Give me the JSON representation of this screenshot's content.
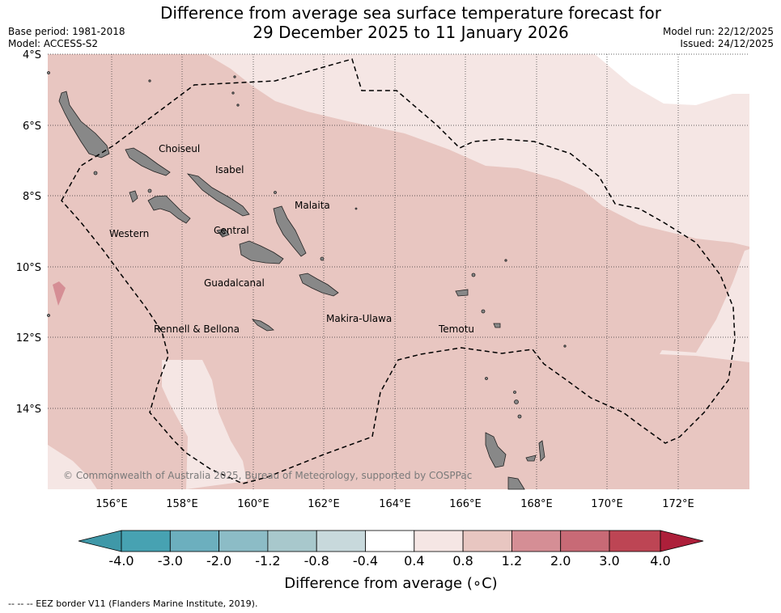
{
  "title_line1": "Difference from average sea surface temperature forecast for",
  "title_line2": "29 December 2025 to 11 January 2026",
  "base_period": "Base period: 1981-2018",
  "model": "Model: ACCESS-S2",
  "model_run": "Model run: 22/12/2025",
  "issued": "Issued: 24/12/2025",
  "copyright": "© Commonwealth of Australia 2025, Bureau of Meteorology, supported by COSPPac",
  "footnote": "--  --  -- EEZ border V11 (Flanders Marine Institute, 2019).",
  "lat_labels": [
    "4°S",
    "6°S",
    "8°S",
    "10°S",
    "12°S",
    "14°S"
  ],
  "lon_labels": [
    "156°E",
    "158°E",
    "160°E",
    "162°E",
    "164°E",
    "166°E",
    "168°E",
    "170°E",
    "172°E"
  ],
  "provinces": [
    "Choiseul",
    "Isabel",
    "Malaita",
    "Western",
    "Central",
    "Guadalcanal",
    "Makira-Ulawa",
    "Rennell & Bellona",
    "Temotu"
  ],
  "colorbar": {
    "label": "Difference from average (∘C)",
    "ticks": [
      "-4.0",
      "-3.0",
      "-2.0",
      "-1.2",
      "-0.8",
      "-0.4",
      "0.4",
      "0.8",
      "1.2",
      "2.0",
      "3.0",
      "4.0"
    ],
    "colors": [
      "#3f98a8",
      "#47a2b2",
      "#6cafbe",
      "#8cbcc6",
      "#a8c8cc",
      "#c8d9dc",
      "#ffffff",
      "#f5e6e4",
      "#e8c6c1",
      "#d58e95",
      "#c86a76",
      "#bd4554",
      "#ad1f3a"
    ]
  },
  "map_colors": {
    "anomaly_0_4_0_8": "#f5e6e4",
    "anomaly_0_8_1_2": "#e8c6c1",
    "anomaly_1_2_2_0": "#d58e95",
    "land": "#888888"
  }
}
